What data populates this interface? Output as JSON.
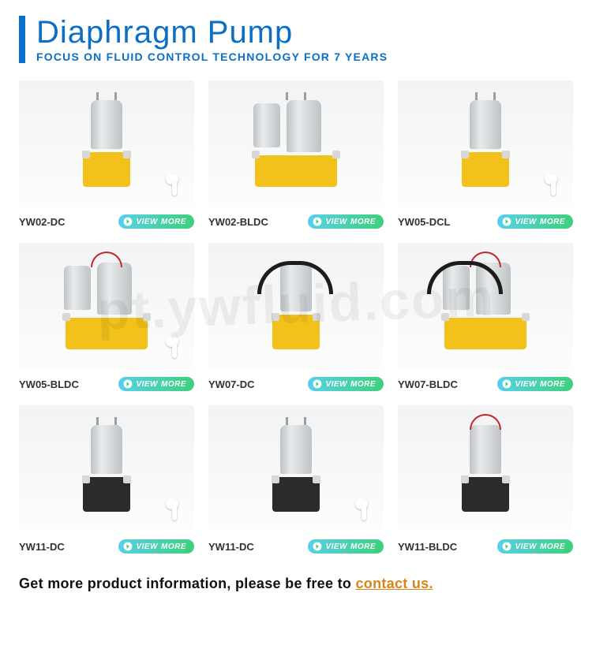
{
  "header": {
    "title": "Diaphragm Pump",
    "subtitle": "FOCUS ON FLUID CONTROL TECHNOLOGY FOR 7 YEARS",
    "accent_color": "#0b6fc8"
  },
  "view_button": {
    "label_prefix": "VIEW",
    "label_strong": "MORE",
    "gradient_from": "#59d0e8",
    "gradient_to": "#3bd17a"
  },
  "products": [
    {
      "model": "YW02-DC",
      "base_color": "yellow",
      "variant": "single",
      "earbud": true,
      "wire": false,
      "tube": false,
      "pins": true
    },
    {
      "model": "YW02-BLDC",
      "base_color": "yellow",
      "variant": "group",
      "earbud": false,
      "wire": false,
      "tube": false,
      "pins": true
    },
    {
      "model": "YW05-DCL",
      "base_color": "yellow",
      "variant": "single",
      "earbud": true,
      "wire": false,
      "tube": false,
      "pins": true
    },
    {
      "model": "YW05-BLDC",
      "base_color": "yellow",
      "variant": "group",
      "earbud": true,
      "wire": true,
      "tube": false,
      "pins": false
    },
    {
      "model": "YW07-DC",
      "base_color": "yellow",
      "variant": "single",
      "earbud": false,
      "wire": false,
      "tube": true,
      "pins": false
    },
    {
      "model": "YW07-BLDC",
      "base_color": "yellow",
      "variant": "group",
      "earbud": false,
      "wire": true,
      "tube": true,
      "pins": false
    },
    {
      "model": "YW11-DC",
      "base_color": "black",
      "variant": "single",
      "earbud": true,
      "wire": false,
      "tube": false,
      "pins": true
    },
    {
      "model": "YW11-DC",
      "base_color": "black",
      "variant": "single",
      "earbud": true,
      "wire": false,
      "tube": false,
      "pins": true
    },
    {
      "model": "YW11-BLDC",
      "base_color": "black",
      "variant": "single",
      "earbud": false,
      "wire": true,
      "tube": false,
      "pins": false
    }
  ],
  "footer": {
    "text_before": "Get more product information, please be free to ",
    "link_text": "contact us.",
    "link_color": "#d8841a"
  },
  "watermark": "pt.ywfluid.com",
  "thumb_bg": "#f4f5f6"
}
